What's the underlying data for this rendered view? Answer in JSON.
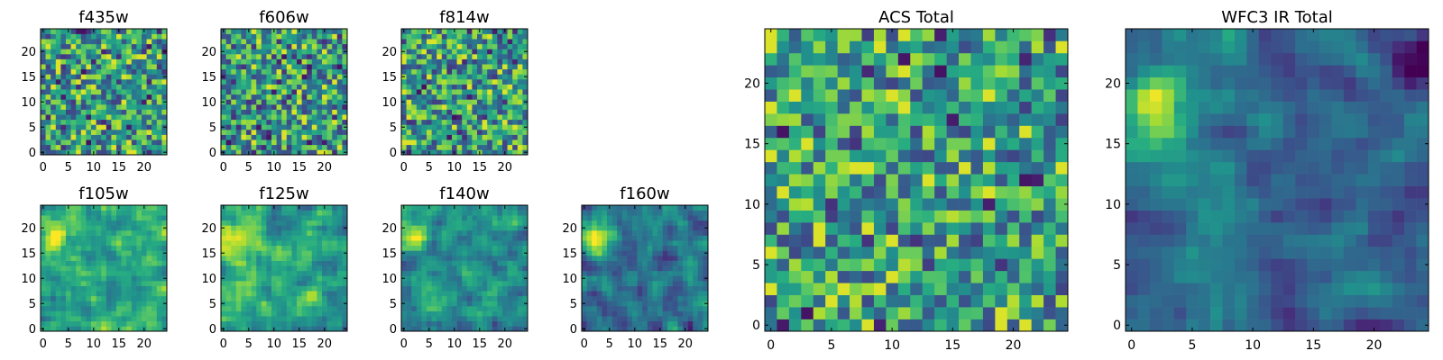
{
  "chart_data": [
    {
      "type": "heatmap",
      "title": "f435w",
      "xlim": [
        -0.5,
        24.5
      ],
      "ylim": [
        -0.5,
        24.5
      ],
      "xticks": [
        0,
        5,
        10,
        15,
        20
      ],
      "yticks": [
        0,
        5,
        10,
        15,
        20
      ],
      "grid": false,
      "colormap": "viridis",
      "pattern": "noise"
    },
    {
      "type": "heatmap",
      "title": "f606w",
      "xlim": [
        -0.5,
        24.5
      ],
      "ylim": [
        -0.5,
        24.5
      ],
      "xticks": [
        0,
        5,
        10,
        15,
        20
      ],
      "yticks": [
        0,
        5,
        10,
        15,
        20
      ],
      "grid": false,
      "colormap": "viridis",
      "pattern": "noise"
    },
    {
      "type": "heatmap",
      "title": "f814w",
      "xlim": [
        -0.5,
        24.5
      ],
      "ylim": [
        -0.5,
        24.5
      ],
      "xticks": [
        0,
        5,
        10,
        15,
        20
      ],
      "yticks": [
        0,
        5,
        10,
        15,
        20
      ],
      "grid": false,
      "colormap": "viridis",
      "pattern": "noise"
    },
    {
      "type": "heatmap",
      "title": "f105w",
      "xlim": [
        -0.5,
        24.5
      ],
      "ylim": [
        -0.5,
        24.5
      ],
      "xticks": [
        0,
        5,
        10,
        15,
        20
      ],
      "yticks": [
        0,
        5,
        10,
        15,
        20
      ],
      "grid": false,
      "colormap": "viridis",
      "pattern": "smooth"
    },
    {
      "type": "heatmap",
      "title": "f125w",
      "xlim": [
        -0.5,
        24.5
      ],
      "ylim": [
        -0.5,
        24.5
      ],
      "xticks": [
        0,
        5,
        10,
        15,
        20
      ],
      "yticks": [
        0,
        5,
        10,
        15,
        20
      ],
      "grid": false,
      "colormap": "viridis",
      "pattern": "smooth"
    },
    {
      "type": "heatmap",
      "title": "f140w",
      "xlim": [
        -0.5,
        24.5
      ],
      "ylim": [
        -0.5,
        24.5
      ],
      "xticks": [
        0,
        5,
        10,
        15,
        20
      ],
      "yticks": [
        0,
        5,
        10,
        15,
        20
      ],
      "grid": false,
      "colormap": "viridis",
      "pattern": "smooth"
    },
    {
      "type": "heatmap",
      "title": "f160w",
      "xlim": [
        -0.5,
        24.5
      ],
      "ylim": [
        -0.5,
        24.5
      ],
      "xticks": [
        0,
        5,
        10,
        15,
        20
      ],
      "yticks": [
        0,
        5,
        10,
        15,
        20
      ],
      "grid": false,
      "colormap": "viridis",
      "pattern": "smooth"
    },
    {
      "type": "heatmap",
      "title": "ACS Total",
      "xlim": [
        -0.5,
        24.5
      ],
      "ylim": [
        -0.5,
        24.5
      ],
      "xticks": [
        0,
        5,
        10,
        15,
        20
      ],
      "yticks": [
        0,
        5,
        10,
        15,
        20
      ],
      "grid": false,
      "colormap": "viridis",
      "pattern": "noise"
    },
    {
      "type": "heatmap",
      "title": "WFC3 IR Total",
      "xlim": [
        -0.5,
        24.5
      ],
      "ylim": [
        -0.5,
        24.5
      ],
      "xticks": [
        0,
        5,
        10,
        15,
        20
      ],
      "yticks": [
        0,
        5,
        10,
        15,
        20
      ],
      "grid": false,
      "colormap": "viridis",
      "pattern": "smooth"
    }
  ]
}
